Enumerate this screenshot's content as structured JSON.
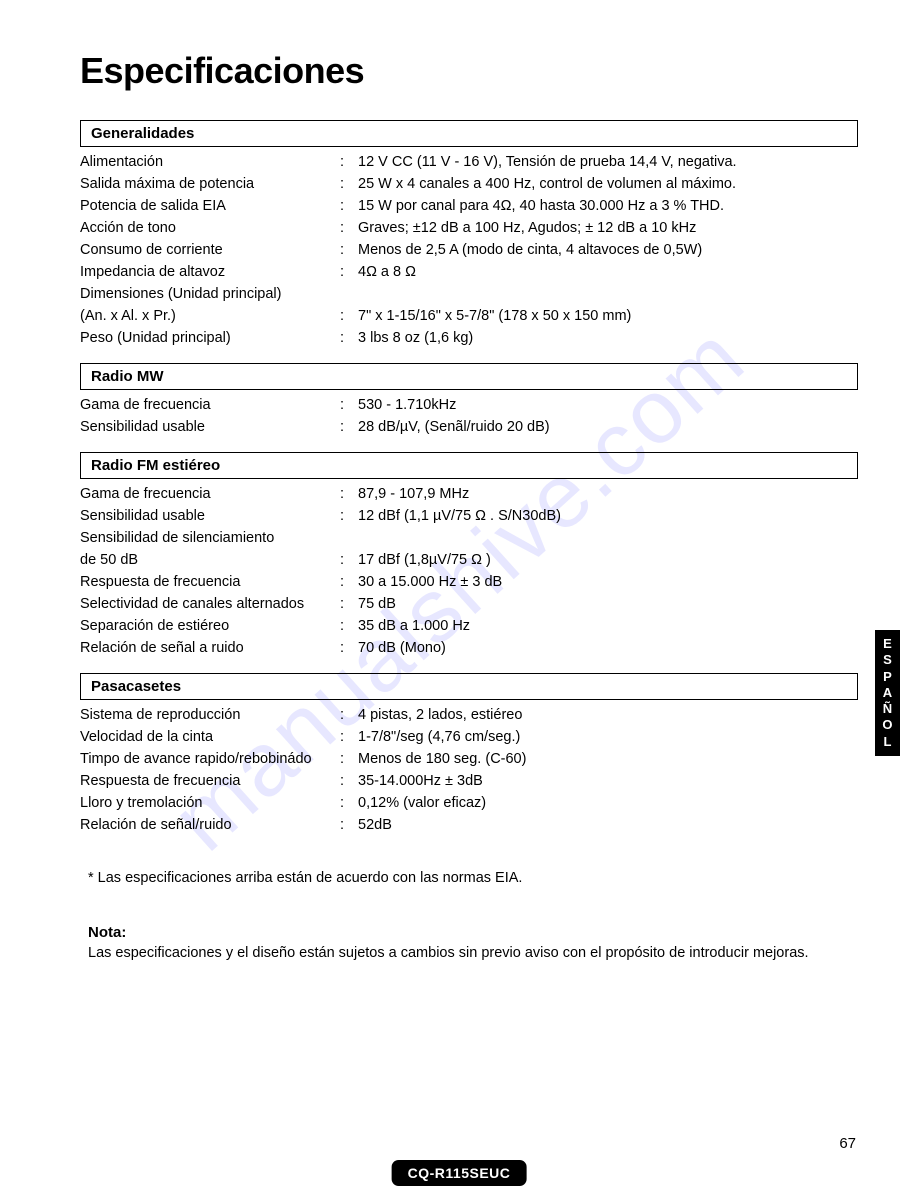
{
  "page_title": "Especificaciones",
  "watermark": "manualshive.com",
  "side_tab": "ESPAÑOL",
  "model": "CQ-R115SEUC",
  "page_number": "67",
  "sections": [
    {
      "header": "Generalidades",
      "rows": [
        {
          "label": "Alimentación",
          "colon": ":",
          "value": "12 V CC (11 V - 16 V), Tensión de prueba 14,4 V, negativa."
        },
        {
          "label": "Salida máxima de potencia",
          "colon": ":",
          "value": "25 W x 4 canales a 400 Hz, control de volumen al máximo."
        },
        {
          "label": "Potencia de salida EIA",
          "colon": ":",
          "value": "15 W por canal para 4Ω, 40 hasta 30.000 Hz a 3 % THD."
        },
        {
          "label": "Acción de tono",
          "colon": ":",
          "value": "Graves; ±12 dB a 100 Hz, Agudos; ± 12 dB a 10 kHz"
        },
        {
          "label": "Consumo de corriente",
          "colon": ":",
          "value": "Menos de 2,5 A (modo de cinta, 4 altavoces de 0,5W)"
        },
        {
          "label": "Impedancia de altavoz",
          "colon": ":",
          "value": "4Ω a 8 Ω"
        },
        {
          "label": "Dimensiones (Unidad  principal)",
          "colon": "",
          "value": ""
        },
        {
          "label": "(An. x Al. x Pr.)",
          "colon": ":",
          "value": "7\" x 1-15/16\" x 5-7/8\" (178 x 50 x 150 mm)"
        },
        {
          "label": "Peso (Unidad principal)",
          "colon": ":",
          "value": "3 lbs 8 oz (1,6 kg)"
        }
      ]
    },
    {
      "header": "Radio MW",
      "rows": [
        {
          "label": "Gama de frecuencia",
          "colon": ":",
          "value": "530 - 1.710kHz"
        },
        {
          "label": "Sensibilidad usable",
          "colon": ":",
          "value": "28 dB/µV, (Senãl/ruido 20 dB)"
        }
      ]
    },
    {
      "header": "Radio FM estiéreo",
      "rows": [
        {
          "label": "Gama de frecuencia",
          "colon": ":",
          "value": "87,9 - 107,9 MHz"
        },
        {
          "label": "Sensibilidad usable",
          "colon": ":",
          "value": "12 dBf (1,1 µV/75 Ω . S/N30dB)"
        },
        {
          "label": "Sensibilidad de silenciamiento",
          "colon": "",
          "value": ""
        },
        {
          "label": "de 50 dB",
          "colon": ":",
          "value": "17 dBf (1,8µV/75 Ω )"
        },
        {
          "label": "Respuesta de frecuencia",
          "colon": ":",
          "value": "30 a 15.000 Hz ± 3 dB"
        },
        {
          "label": "Selectividad de canales alternados",
          "colon": ":",
          "value": "75 dB"
        },
        {
          "label": "Separación de estiéreo",
          "colon": ":",
          "value": "35 dB a 1.000 Hz"
        },
        {
          "label": "Relación de señal a ruido",
          "colon": ":",
          "value": "70 dB (Mono)"
        }
      ]
    },
    {
      "header": "Pasacasetes",
      "rows": [
        {
          "label": "Sistema de reproducción",
          "colon": ":",
          "value": "4 pistas, 2 lados, estiéreo"
        },
        {
          "label": "Velocidad de la cinta",
          "colon": ":",
          "value": "1-7/8\"/seg (4,76 cm/seg.)"
        },
        {
          "label": "Timpo de avance rapido/rebobinádo",
          "colon": ":",
          "value": "Menos de 180 seg. (C-60)"
        },
        {
          "label": "Respuesta de frecuencia",
          "colon": ":",
          "value": "35-14.000Hz ± 3dB"
        },
        {
          "label": "Lloro y tremolación",
          "colon": ":",
          "value": "0,12% (valor eficaz)"
        },
        {
          "label": "Relación de señal/ruido",
          "colon": ":",
          "value": "52dB"
        }
      ]
    }
  ],
  "footnote": "* Las especificaciones arriba están de acuerdo con las normas EIA.",
  "nota_head": "Nota:",
  "nota_body": "Las especificaciones y el diseño están sujetos a cambios sin previo aviso con el propósito de introducir mejoras."
}
